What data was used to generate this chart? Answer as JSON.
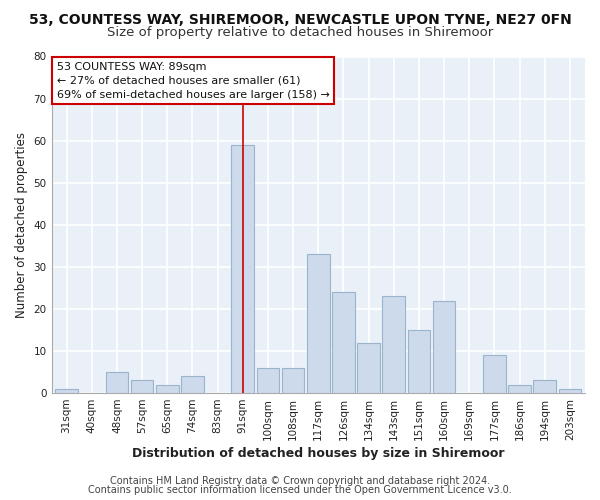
{
  "title1": "53, COUNTESS WAY, SHIREMOOR, NEWCASTLE UPON TYNE, NE27 0FN",
  "title2": "Size of property relative to detached houses in Shiremoor",
  "xlabel": "Distribution of detached houses by size in Shiremoor",
  "ylabel": "Number of detached properties",
  "categories": [
    "31sqm",
    "40sqm",
    "48sqm",
    "57sqm",
    "65sqm",
    "74sqm",
    "83sqm",
    "91sqm",
    "100sqm",
    "108sqm",
    "117sqm",
    "126sqm",
    "134sqm",
    "143sqm",
    "151sqm",
    "160sqm",
    "169sqm",
    "177sqm",
    "186sqm",
    "194sqm",
    "203sqm"
  ],
  "values": [
    1,
    0,
    5,
    3,
    2,
    4,
    0,
    59,
    6,
    6,
    33,
    24,
    12,
    23,
    15,
    22,
    0,
    9,
    2,
    3,
    1
  ],
  "bar_color": "#ccdaeb",
  "bar_edge_color": "#9ab4cc",
  "highlight_index": 7,
  "highlight_line_color": "#cc0000",
  "ylim": [
    0,
    80
  ],
  "yticks": [
    0,
    10,
    20,
    30,
    40,
    50,
    60,
    70,
    80
  ],
  "annotation_box_text": [
    "53 COUNTESS WAY: 89sqm",
    "← 27% of detached houses are smaller (61)",
    "69% of semi-detached houses are larger (158) →"
  ],
  "annotation_box_color": "#ffffff",
  "annotation_box_edge_color": "#cc0000",
  "footer1": "Contains HM Land Registry data © Crown copyright and database right 2024.",
  "footer2": "Contains public sector information licensed under the Open Government Licence v3.0.",
  "background_color": "#ffffff",
  "plot_bg_color": "#eaf0f8",
  "grid_color": "#ffffff",
  "title1_fontsize": 10,
  "title2_fontsize": 9.5,
  "xlabel_fontsize": 9,
  "ylabel_fontsize": 8.5,
  "tick_fontsize": 7.5,
  "footer_fontsize": 7,
  "ann_fontsize": 8
}
